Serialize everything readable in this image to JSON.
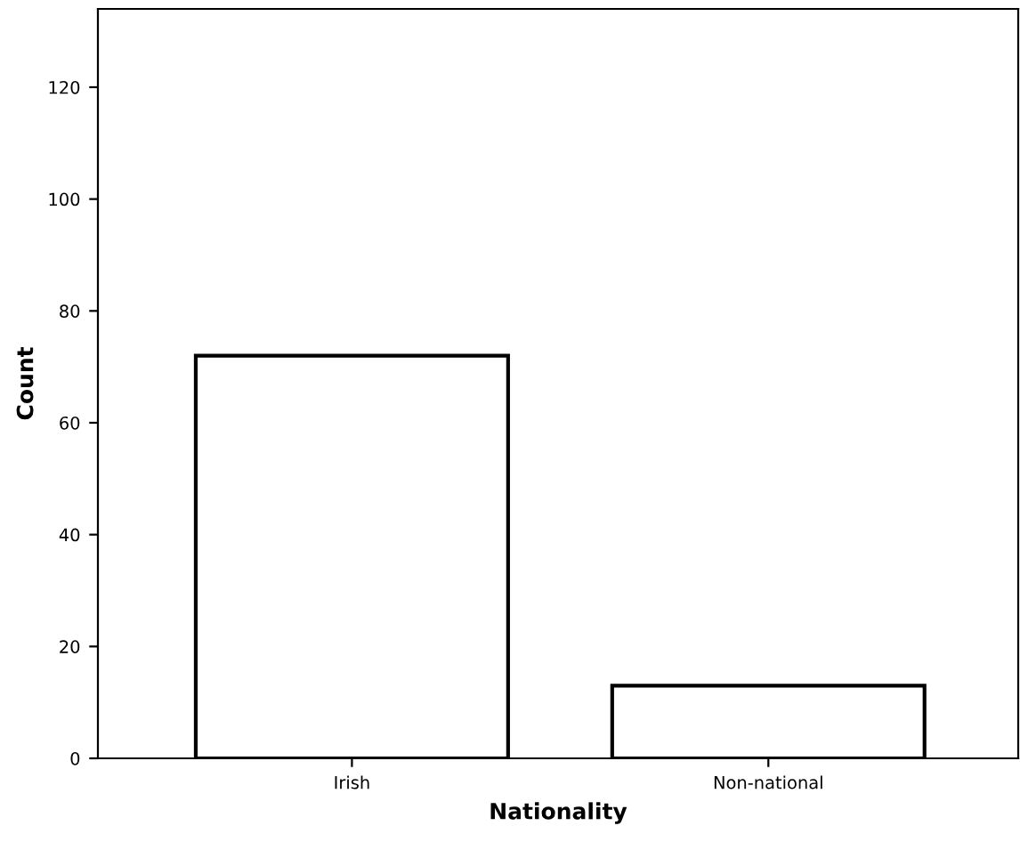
{
  "chart_data": {
    "type": "bar",
    "xlabel": "Nationality",
    "ylabel": "Count",
    "categories": [
      "Irish",
      "Non-national"
    ],
    "values": [
      72,
      13
    ],
    "color": "#ffffff",
    "ylim": [
      0,
      134
    ],
    "yticks": [
      0,
      20,
      40,
      60,
      80,
      100,
      120
    ],
    "grid": false
  }
}
